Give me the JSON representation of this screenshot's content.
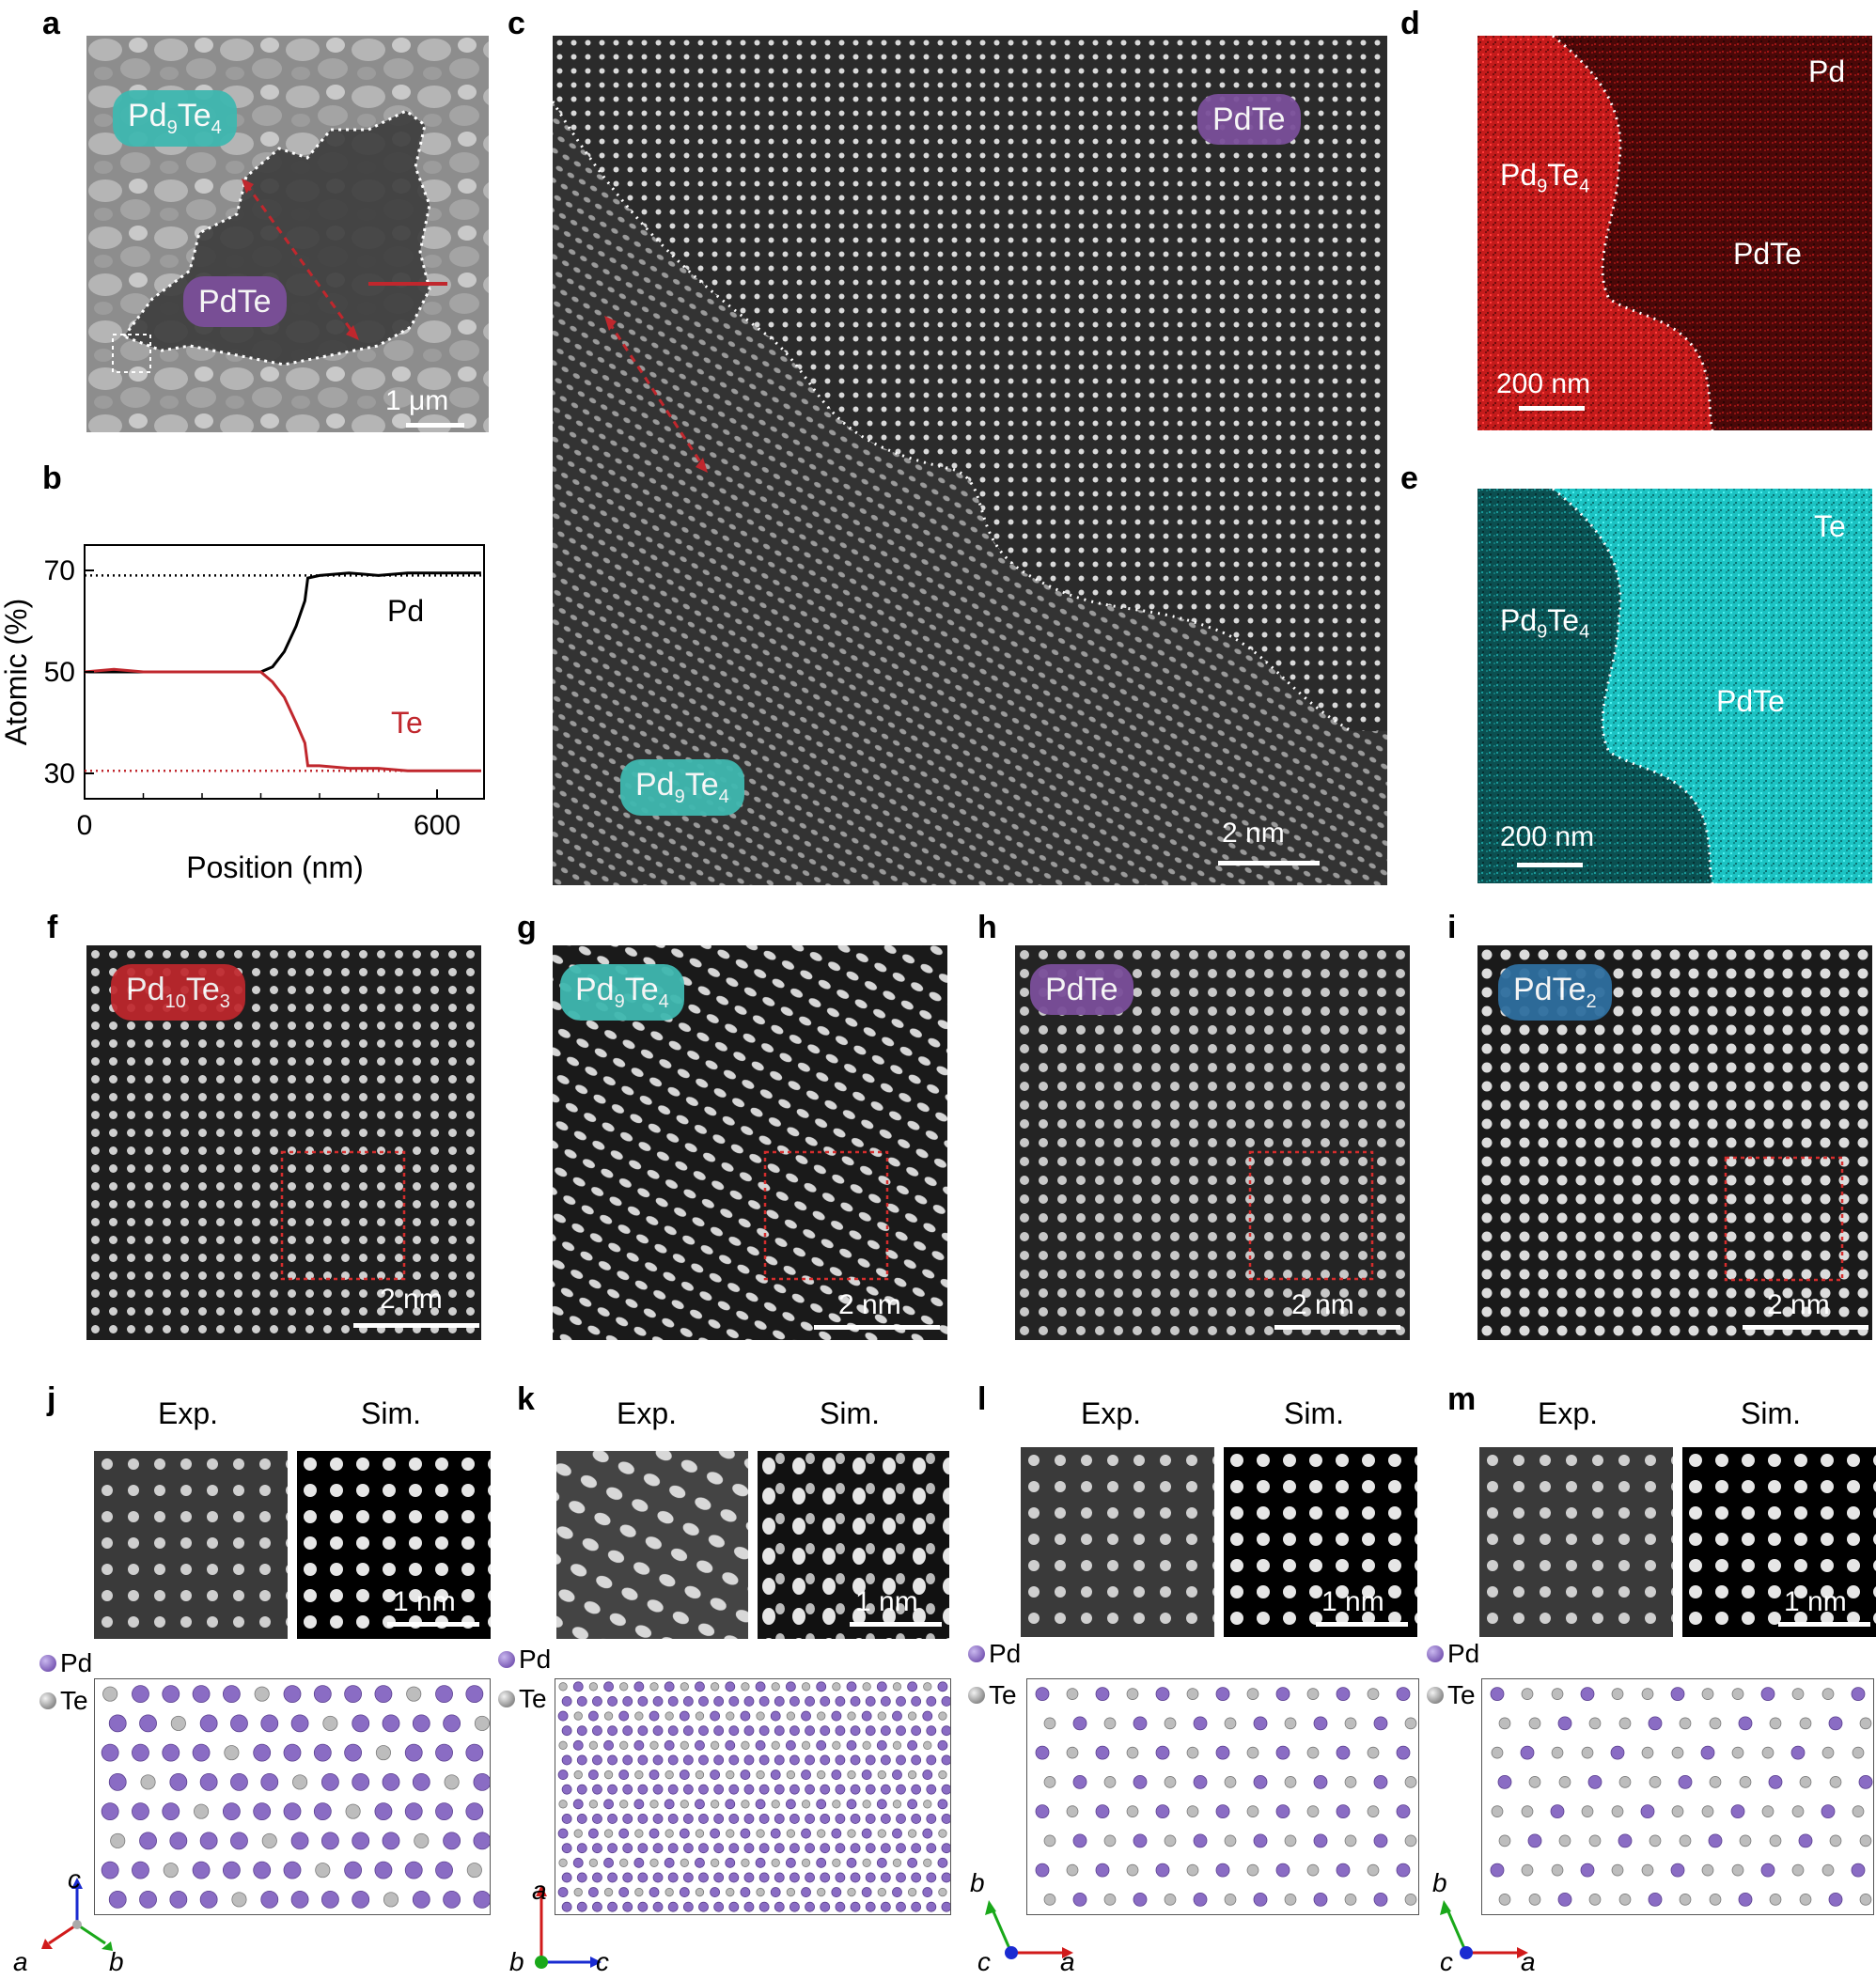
{
  "panels": {
    "a": {
      "label": "a",
      "tag_pd9te4": {
        "base": "Pd",
        "s1": "9",
        "mid": "Te",
        "s2": "4"
      },
      "tag_pdte": "PdTe",
      "scale": "1 μm"
    },
    "b": {
      "label": "b",
      "ylabel": "Atomic (%)",
      "xlabel": "Position (nm)",
      "yticks": [
        "70",
        "50",
        "30"
      ],
      "xticks": [
        "0",
        "600"
      ],
      "pd_label": "Pd",
      "te_label": "Te"
    },
    "c": {
      "label": "c",
      "tag_pdte": "PdTe",
      "tag_pd9te4": {
        "base": "Pd",
        "s1": "9",
        "mid": "Te",
        "s2": "4"
      },
      "scale": "2 nm"
    },
    "d": {
      "label": "d",
      "element": "Pd",
      "left": {
        "base": "Pd",
        "s1": "9",
        "mid": "Te",
        "s2": "4"
      },
      "right": "PdTe",
      "scale": "200 nm"
    },
    "e": {
      "label": "e",
      "element": "Te",
      "left": {
        "base": "Pd",
        "s1": "9",
        "mid": "Te",
        "s2": "4"
      },
      "right": "PdTe",
      "scale": "200 nm"
    },
    "f": {
      "label": "f",
      "tag": {
        "base": "Pd",
        "s1": "10",
        "mid": "Te",
        "s2": "3"
      },
      "scale": "2 nm"
    },
    "g": {
      "label": "g",
      "tag": {
        "base": "Pd",
        "s1": "9",
        "mid": "Te",
        "s2": "4"
      },
      "scale": "2 nm"
    },
    "h": {
      "label": "h",
      "tag": "PdTe",
      "scale": "2 nm"
    },
    "i": {
      "label": "i",
      "tag": {
        "base": "PdTe",
        "s1": "2"
      },
      "scale": "2 nm"
    },
    "j": {
      "label": "j",
      "exp": "Exp.",
      "sim": "Sim.",
      "scale": "1 nm",
      "legend_pd": "Pd",
      "legend_te": "Te",
      "axes": [
        "c",
        "a",
        "b"
      ]
    },
    "k": {
      "label": "k",
      "exp": "Exp.",
      "sim": "Sim.",
      "scale": "1 nm",
      "legend_pd": "Pd",
      "legend_te": "Te",
      "axes": [
        "a",
        "b",
        "c"
      ]
    },
    "l": {
      "label": "l",
      "exp": "Exp.",
      "sim": "Sim.",
      "scale": "1 nm",
      "legend_pd": "Pd",
      "legend_te": "Te",
      "axes": [
        "b",
        "c",
        "a"
      ]
    },
    "m": {
      "label": "m",
      "exp": "Exp.",
      "sim": "Sim.",
      "scale": "1 nm",
      "legend_pd": "Pd",
      "legend_te": "Te",
      "axes": [
        "b",
        "c",
        "a"
      ]
    }
  },
  "chart_data": {
    "type": "line",
    "xlabel": "Position (nm)",
    "ylabel": "Atomic (%)",
    "xlim": [
      0,
      680
    ],
    "ylim": [
      25,
      75
    ],
    "series": [
      {
        "name": "Pd",
        "color": "#000000",
        "x": [
          0,
          50,
          100,
          150,
          200,
          250,
          300,
          320,
          340,
          360,
          375,
          380,
          400,
          450,
          500,
          550,
          600,
          650,
          675
        ],
        "y": [
          50,
          50,
          50,
          50,
          50,
          50,
          50,
          51,
          54,
          59,
          64,
          68.5,
          69,
          69.5,
          69,
          69.5,
          69.5,
          69.5,
          69.5
        ]
      },
      {
        "name": "Te",
        "color": "#c0272d",
        "x": [
          0,
          50,
          100,
          150,
          200,
          250,
          300,
          320,
          340,
          360,
          375,
          380,
          400,
          450,
          500,
          550,
          600,
          650,
          675
        ],
        "y": [
          50,
          50.5,
          50,
          50,
          50,
          50,
          50,
          48,
          45,
          40,
          36,
          31.5,
          31.5,
          31,
          31,
          30.5,
          30.5,
          30.5,
          30.5
        ]
      }
    ],
    "reference_lines": [
      {
        "y": 69,
        "color": "#000000",
        "style": "dotted"
      },
      {
        "y": 30.5,
        "color": "#c0272d",
        "style": "dotted"
      }
    ]
  },
  "colors": {
    "pdte": "#7b4f9a",
    "pd9te4": "#3fb8b0",
    "pd10te3": "#c0272d",
    "pdte2": "#2f6f9f",
    "pd_map": "#d81e1e",
    "te_map": "#16c0c0"
  }
}
